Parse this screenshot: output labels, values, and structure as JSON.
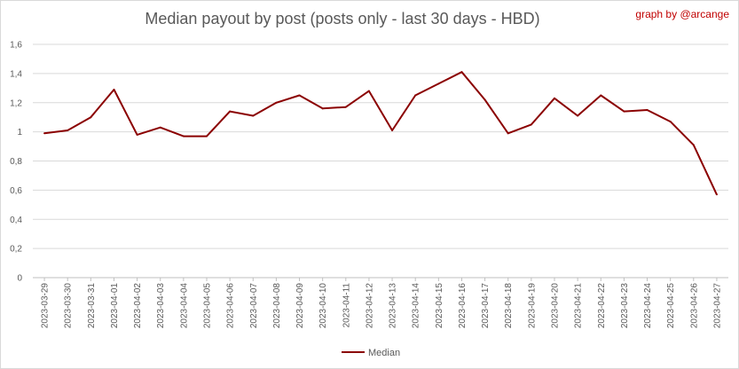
{
  "credit": "graph by @arcange",
  "chart_data": {
    "type": "line",
    "title": "Median payout by post (posts only - last 30 days - HBD)",
    "xlabel": "",
    "ylabel": "",
    "ylim": [
      0,
      1.6
    ],
    "y_ticks": [
      "0",
      "0,2",
      "0,4",
      "0,6",
      "0,8",
      "1",
      "1,2",
      "1,4",
      "1,6"
    ],
    "grid": true,
    "legend_position": "bottom",
    "categories": [
      "2023-03-29",
      "2023-03-30",
      "2023-03-31",
      "2023-04-01",
      "2023-04-02",
      "2023-04-03",
      "2023-04-04",
      "2023-04-05",
      "2023-04-06",
      "2023-04-07",
      "2023-04-08",
      "2023-04-09",
      "2023-04-10",
      "2023-04-11",
      "2023-04-12",
      "2023-04-13",
      "2023-04-14",
      "2023-04-15",
      "2023-04-16",
      "2023-04-17",
      "2023-04-18",
      "2023-04-19",
      "2023-04-20",
      "2023-04-21",
      "2023-04-22",
      "2023-04-23",
      "2023-04-24",
      "2023-04-25",
      "2023-04-26",
      "2023-04-27"
    ],
    "series": [
      {
        "name": "Median",
        "color": "#8b0000",
        "values": [
          0.99,
          1.01,
          1.1,
          1.29,
          0.98,
          1.03,
          0.97,
          0.97,
          1.14,
          1.11,
          1.2,
          1.25,
          1.16,
          1.17,
          1.28,
          1.01,
          1.25,
          1.33,
          1.41,
          1.22,
          0.99,
          1.05,
          1.23,
          1.11,
          1.25,
          1.14,
          1.15,
          1.07,
          0.91,
          0.57
        ]
      }
    ]
  }
}
